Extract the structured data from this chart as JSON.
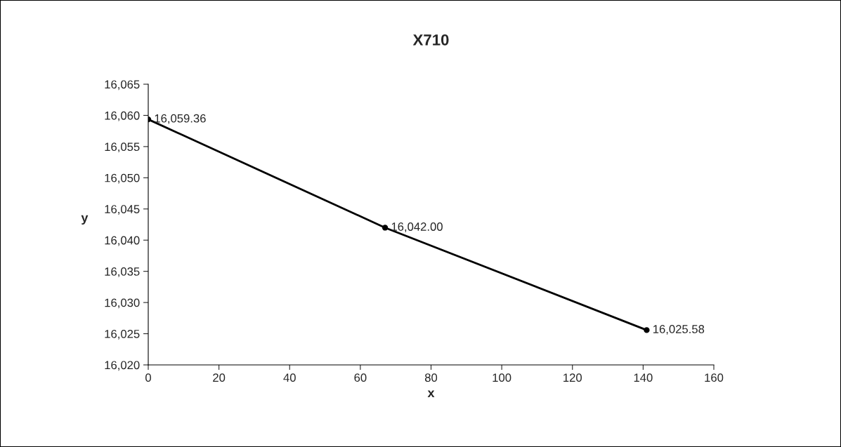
{
  "chart_data": {
    "type": "line",
    "title": "X710",
    "xlabel": "x",
    "ylabel": "y",
    "x": [
      0,
      67,
      141
    ],
    "series": [
      {
        "color": "#000000",
        "values": [
          16059.36,
          16042.0,
          16025.58
        ],
        "value_labels": [
          "16,059.36",
          "16,042.00",
          "16,025.58"
        ]
      }
    ],
    "xlim": [
      0,
      160
    ],
    "xticks": [
      0,
      20,
      40,
      60,
      80,
      100,
      120,
      140,
      160
    ],
    "ylim": [
      16020,
      16065
    ],
    "yticks": [
      {
        "value": 16020,
        "label": "16,020"
      },
      {
        "value": 16025,
        "label": "16,025"
      },
      {
        "value": 16030,
        "label": "16,030"
      },
      {
        "value": 16035,
        "label": "16,035"
      },
      {
        "value": 16040,
        "label": "16,040"
      },
      {
        "value": 16045,
        "label": "16,045"
      },
      {
        "value": 16050,
        "label": "16,050"
      },
      {
        "value": 16055,
        "label": "16,055"
      },
      {
        "value": 16060,
        "label": "16,060"
      },
      {
        "value": 16065,
        "label": "16,065"
      }
    ],
    "marker": "circle",
    "line_style": "solid",
    "grid": false,
    "legend": false
  }
}
